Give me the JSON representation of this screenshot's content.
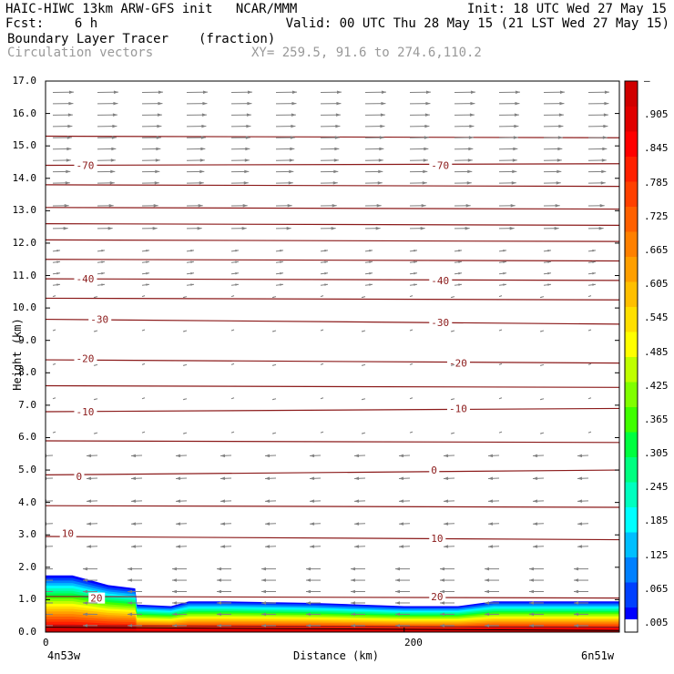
{
  "header": {
    "line1_left": "HAIC-HIWC 13km ARW-GFS init   NCAR/MMM",
    "line1_right": "Init: 18 UTC Wed 27 May 15",
    "line2_left": "Fcst:    6 h",
    "line2_right": "Valid: 00 UTC Thu 28 May 15 (21 LST Wed 27 May 15)",
    "line3_left": "Boundary Layer Tracer",
    "line3_units": "(fraction)",
    "line4_left": "Circulation vectors",
    "line4_right": "XY= 259.5, 91.6 to 274.6,110.2"
  },
  "chart_data": {
    "type": "cross-section",
    "ylabel": "Height (km)",
    "xlabel": "Distance (km)",
    "x_left_label": "4n53w",
    "x_right_label": "6n51w",
    "x_ticks": [
      "0",
      "200"
    ],
    "y_ticks": [
      "0.0",
      "1.0",
      "2.0",
      "3.0",
      "4.0",
      "5.0",
      "6.0",
      "7.0",
      "8.0",
      "9.0",
      "10.0",
      "11.0",
      "12.0",
      "13.0",
      "14.0",
      "15.0",
      "16.0",
      "17.0"
    ],
    "ylim": [
      0,
      17
    ],
    "xlim": [
      0,
      320
    ],
    "colorbar_labels": [
      ".005",
      ".065",
      ".125",
      ".185",
      ".245",
      ".305",
      ".365",
      ".425",
      ".485",
      ".545",
      ".605",
      ".665",
      ".725",
      ".785",
      ".845",
      ".905",
      "–"
    ],
    "colorbar_colors": [
      "#0000ff",
      "#0040ff",
      "#0080ff",
      "#00bfff",
      "#00ffff",
      "#00ffbf",
      "#00ff80",
      "#00ff40",
      "#40ff00",
      "#80ff00",
      "#bfff00",
      "#ffff00",
      "#ffdf00",
      "#ffbf00",
      "#ff9f00",
      "#ff8000",
      "#ff6000",
      "#ff4000",
      "#ff2000",
      "#ff0000",
      "#e00000",
      "#d00000"
    ],
    "contour_color": "#8b1a1a",
    "vector_color": "#808080",
    "temperature_contours": [
      {
        "label": "20",
        "y_left": 1.1,
        "y_right": 1.05
      },
      {
        "label": "10",
        "y_left": 2.95,
        "y_right": 2.85
      },
      {
        "label": "0",
        "y_left": 4.85,
        "y_right": 5.0
      },
      {
        "label": "-10",
        "y_left": 6.8,
        "y_right": 6.9
      },
      {
        "label": "-20",
        "y_left": 8.4,
        "y_right": 8.3
      },
      {
        "label": "-30",
        "y_left": 9.65,
        "y_right": 9.5
      },
      {
        "label": "-40",
        "y_left": 10.9,
        "y_right": 10.85
      },
      {
        "label": "-70",
        "y_left": 14.4,
        "y_right": 14.45
      }
    ],
    "extra_contours_y": [
      0.2,
      3.9,
      5.9,
      7.6,
      10.3,
      11.5,
      12.1,
      12.6,
      13.1,
      13.8,
      15.3
    ],
    "labelled_contours": [
      {
        "label": "20",
        "x": 25,
        "y": 1.05
      },
      {
        "label": "20",
        "x": 215,
        "y": 1.1
      },
      {
        "label": "10",
        "x": 9,
        "y": 3.05
      },
      {
        "label": "10",
        "x": 215,
        "y": 2.9
      },
      {
        "label": "0",
        "x": 17,
        "y": 4.8
      },
      {
        "label": "0",
        "x": 215,
        "y": 5.0
      },
      {
        "label": "-10",
        "x": 17,
        "y": 6.8
      },
      {
        "label": "-10",
        "x": 225,
        "y": 6.9
      },
      {
        "label": "-20",
        "x": 17,
        "y": 8.45
      },
      {
        "label": "-20",
        "x": 225,
        "y": 8.3
      },
      {
        "label": "-30",
        "x": 25,
        "y": 9.65
      },
      {
        "label": "-30",
        "x": 215,
        "y": 9.55
      },
      {
        "label": "-40",
        "x": 17,
        "y": 10.9
      },
      {
        "label": "-40",
        "x": 215,
        "y": 10.85
      },
      {
        "label": "-70",
        "x": 17,
        "y": 14.4
      },
      {
        "label": "-70",
        "x": 215,
        "y": 14.4
      }
    ],
    "bl_tracer_top_km": [
      [
        0,
        1.75
      ],
      [
        15,
        1.75
      ],
      [
        25,
        1.6
      ],
      [
        35,
        1.45
      ],
      [
        50,
        1.35
      ],
      [
        51,
        0.85
      ],
      [
        70,
        0.8
      ],
      [
        80,
        0.95
      ],
      [
        100,
        0.95
      ],
      [
        150,
        0.9
      ],
      [
        200,
        0.8
      ],
      [
        230,
        0.8
      ],
      [
        250,
        0.95
      ],
      [
        290,
        0.95
      ],
      [
        320,
        0.95
      ]
    ]
  }
}
